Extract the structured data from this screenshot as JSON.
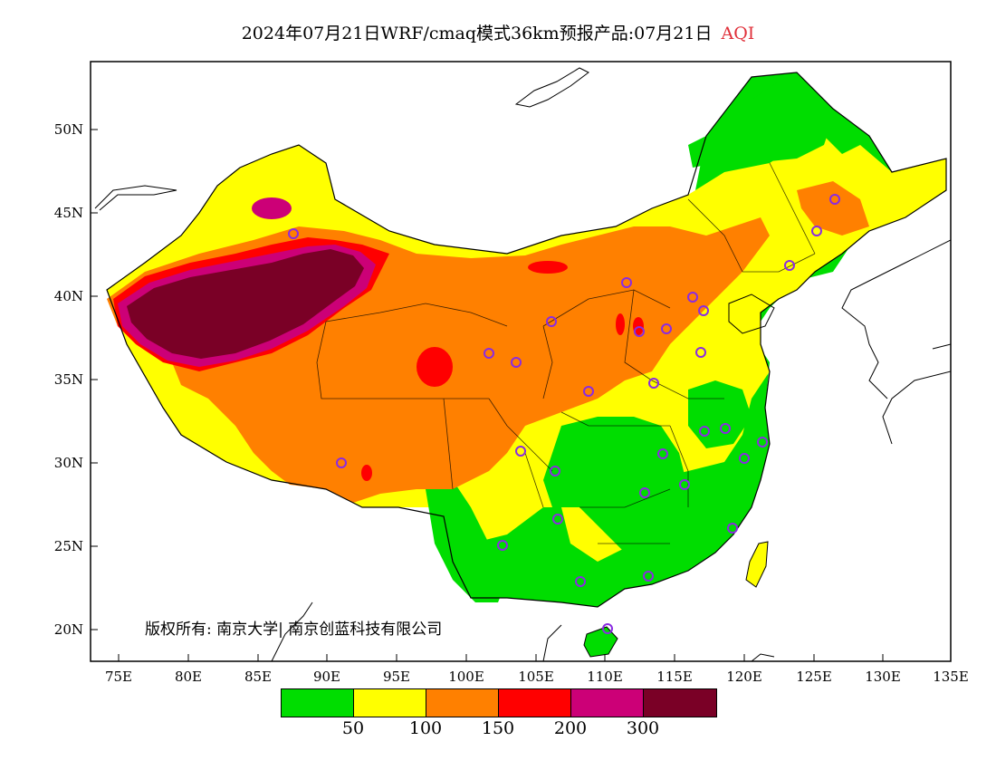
{
  "title": {
    "text": "2024年07月21日WRF/cmaq模式36km预报产品:07月21日",
    "variable": "AQI",
    "variable_color": "#e0303a"
  },
  "map": {
    "latitude_labels": [
      "50N",
      "45N",
      "40N",
      "35N",
      "30N",
      "25N",
      "20N"
    ],
    "longitude_labels": [
      "75E",
      "80E",
      "85E",
      "90E",
      "95E",
      "100E",
      "105E",
      "110E",
      "115E",
      "120E",
      "125E",
      "130E",
      "135E"
    ],
    "copyright": "版权所有: 南京大学| 南京创蓝科技有限公司",
    "station_marker_color": "#8a2be2"
  },
  "legend": {
    "colors": [
      "#00dd00",
      "#ffff00",
      "#ff8000",
      "#ff0000",
      "#cc0077",
      "#7a0026"
    ],
    "ticks": [
      "50",
      "100",
      "150",
      "200",
      "300"
    ]
  }
}
